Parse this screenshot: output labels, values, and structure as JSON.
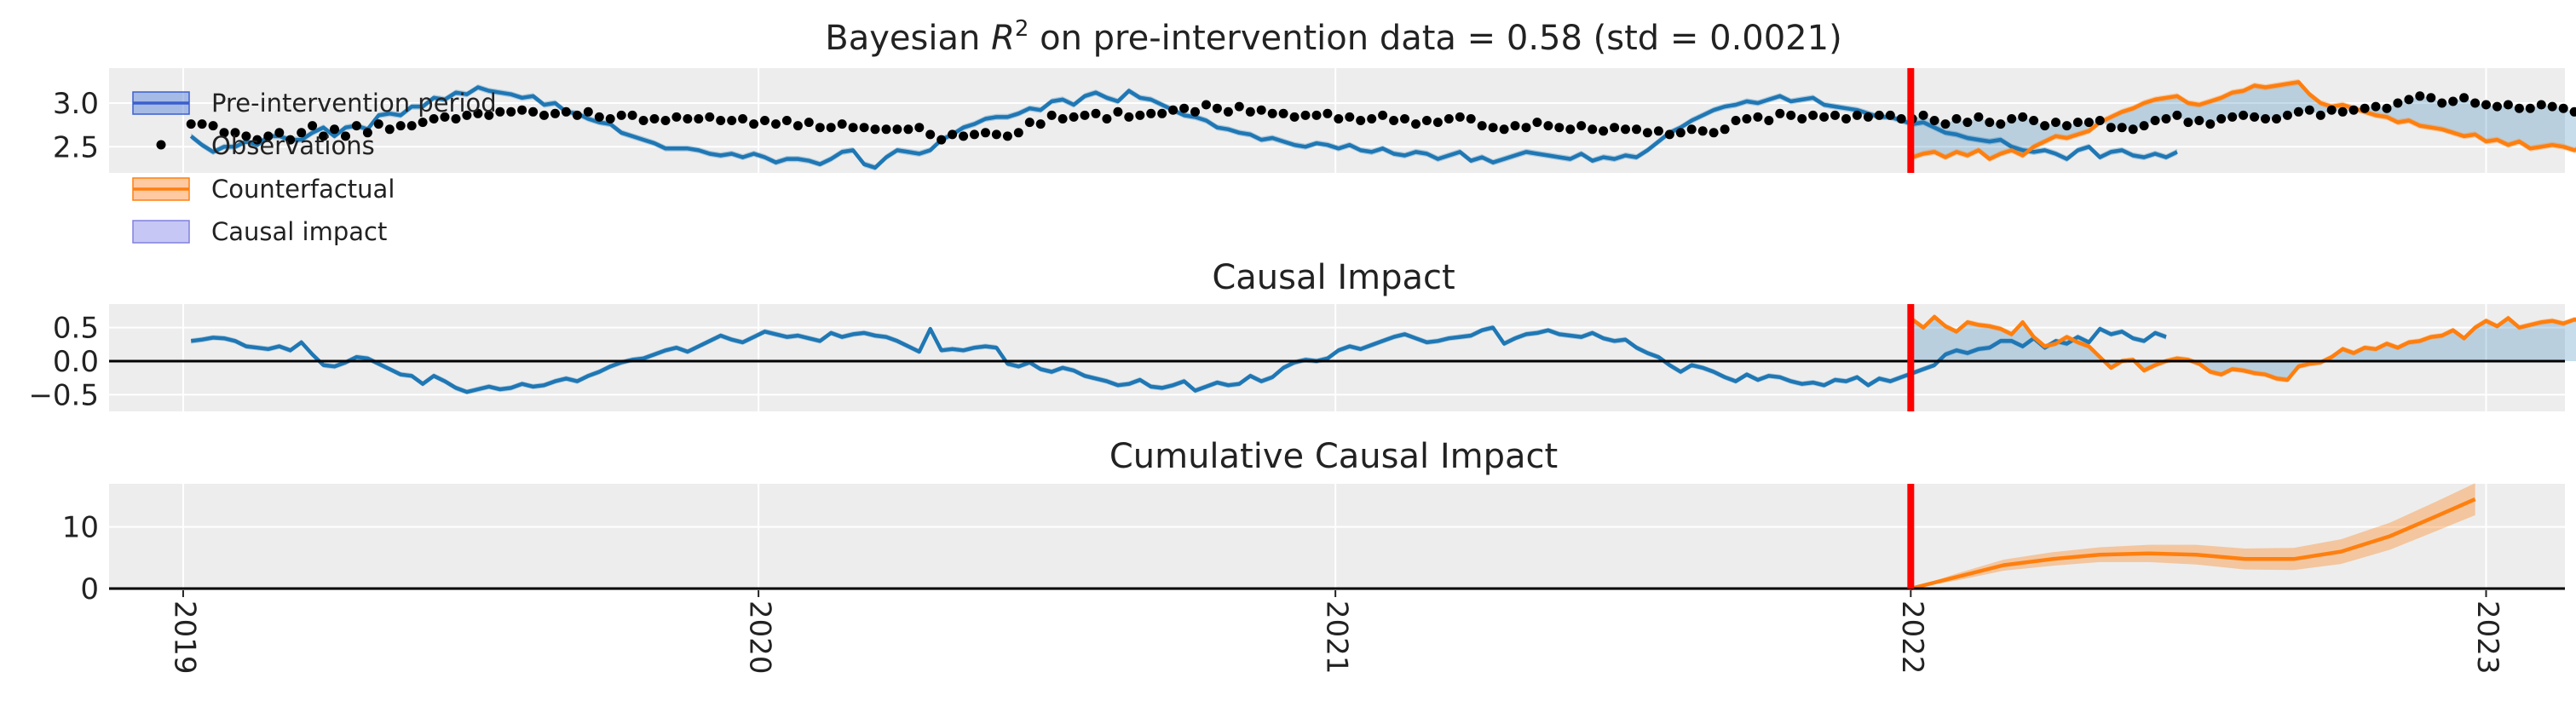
{
  "colors": {
    "blue": "#1f77b4",
    "orange": "#ff7f0e",
    "intervention": "#ff0000",
    "impact_fill": "#9999ee",
    "panel_bg": "#ededed",
    "grid": "#ffffff",
    "observation": "#000000"
  },
  "legend": {
    "items": [
      {
        "label": "Pre-intervention period",
        "symbol": "band-line-blue"
      },
      {
        "label": "Observations",
        "symbol": "dot-black"
      },
      {
        "label": "Counterfactual",
        "symbol": "band-line-orange"
      },
      {
        "label": "Causal impact",
        "symbol": "band-purple"
      }
    ],
    "position": "upper-left"
  },
  "chart_data": [
    {
      "type": "line",
      "title": "Bayesian R² on pre-intervention data = 0.58 (std = 0.0021)",
      "title_prefix": "Bayesian ",
      "title_symbol": "R",
      "title_sup": "2",
      "title_suffix": " on pre-intervention data = 0.58 (std = 0.0021)",
      "xlabel": "",
      "ylabel": "",
      "x_domain": [
        "2018-11-15",
        "2023-02-20"
      ],
      "ylim": [
        2.2,
        3.4
      ],
      "y_ticks": [
        2.5,
        3.0
      ],
      "y_tick_labels": [
        "2.5",
        "3.0"
      ],
      "grid": true,
      "intervention_date": "2022-01-01",
      "series": [
        {
          "name": "Observations",
          "kind": "scatter",
          "color": "#000000",
          "start": "2019-01-06",
          "step_days": 7,
          "values": [
            2.76,
            2.76,
            2.74,
            2.66,
            2.66,
            2.62,
            2.58,
            2.62,
            2.66,
            2.58,
            2.66,
            2.74,
            2.62,
            2.7,
            2.62,
            2.74,
            2.66,
            2.76,
            2.7,
            2.74,
            2.74,
            2.78,
            2.82,
            2.84,
            2.82,
            2.86,
            2.88,
            2.86,
            2.9,
            2.9,
            2.92,
            2.9,
            2.86,
            2.88,
            2.9,
            2.86,
            2.9,
            2.84,
            2.82,
            2.86,
            2.86,
            2.8,
            2.82,
            2.8,
            2.84,
            2.82,
            2.82,
            2.84,
            2.8,
            2.8,
            2.82,
            2.76,
            2.8,
            2.76,
            2.8,
            2.74,
            2.78,
            2.72,
            2.72,
            2.76,
            2.72,
            2.72,
            2.7,
            2.7,
            2.7,
            2.7,
            2.72,
            2.64,
            2.58,
            2.64,
            2.62,
            2.64,
            2.66,
            2.64,
            2.62,
            2.66,
            2.78,
            2.76,
            2.86,
            2.82,
            2.84,
            2.86,
            2.88,
            2.82,
            2.9,
            2.84,
            2.86,
            2.88,
            2.88,
            2.92,
            2.94,
            2.9,
            2.98,
            2.94,
            2.9,
            2.96,
            2.9,
            2.92,
            2.88,
            2.88,
            2.84,
            2.86,
            2.86,
            2.88,
            2.82,
            2.84,
            2.8,
            2.82,
            2.86,
            2.8,
            2.82,
            2.76,
            2.8,
            2.78,
            2.82,
            2.84,
            2.82,
            2.74,
            2.72,
            2.7,
            2.74,
            2.72,
            2.78,
            2.74,
            2.72,
            2.7,
            2.74,
            2.7,
            2.68,
            2.72,
            2.7,
            2.7,
            2.66,
            2.68,
            2.64,
            2.66,
            2.7,
            2.68,
            2.66,
            2.7,
            2.8,
            2.82,
            2.84,
            2.8,
            2.88,
            2.86,
            2.82,
            2.86,
            2.84,
            2.86,
            2.82,
            2.86,
            2.84,
            2.86,
            2.86,
            2.82,
            2.82,
            2.86,
            2.8,
            2.76,
            2.82,
            2.78,
            2.84,
            2.78,
            2.76,
            2.82,
            2.84,
            2.8,
            2.74,
            2.78,
            2.74,
            2.78,
            2.78,
            2.8,
            2.72,
            2.72,
            2.7,
            2.74,
            2.8,
            2.82,
            2.86,
            2.78,
            2.8,
            2.76,
            2.82,
            2.84,
            2.86,
            2.84,
            2.82,
            2.82,
            2.86,
            2.9,
            2.92,
            2.86,
            2.92,
            2.9,
            2.92,
            2.94,
            2.96,
            2.94,
            3.0,
            3.04,
            3.08,
            3.06,
            3.0,
            3.02,
            3.06,
            3.0,
            2.98,
            2.96,
            2.98,
            2.94,
            2.94,
            2.98,
            2.96,
            2.94,
            2.9,
            2.92,
            2.94,
            2.96,
            2.9,
            2.92,
            2.94,
            2.88,
            2.86
          ]
        },
        {
          "name": "Pre-intervention period",
          "kind": "line",
          "color": "#1f77b4",
          "start": "2019-01-06",
          "step_days": 7,
          "values": [
            2.62,
            2.52,
            2.44,
            2.5,
            2.5,
            2.56,
            2.52,
            2.62,
            2.62,
            2.58,
            2.58,
            2.66,
            2.72,
            2.62,
            2.72,
            2.74,
            2.7,
            2.86,
            2.88,
            2.86,
            2.96,
            2.96,
            3.06,
            3.04,
            3.12,
            3.1,
            3.18,
            3.14,
            3.12,
            3.1,
            3.06,
            3.08,
            2.98,
            3.0,
            2.9,
            2.88,
            2.82,
            2.78,
            2.76,
            2.66,
            2.62,
            2.58,
            2.54,
            2.48,
            2.48,
            2.48,
            2.46,
            2.42,
            2.4,
            2.42,
            2.38,
            2.42,
            2.38,
            2.32,
            2.36,
            2.36,
            2.34,
            2.3,
            2.36,
            2.44,
            2.46,
            2.3,
            2.26,
            2.38,
            2.46,
            2.44,
            2.42,
            2.46,
            2.58,
            2.64,
            2.72,
            2.76,
            2.82,
            2.84,
            2.84,
            2.88,
            2.94,
            2.92,
            3.02,
            3.04,
            2.98,
            3.08,
            3.12,
            3.06,
            3.02,
            3.14,
            3.06,
            3.04,
            2.98,
            2.92,
            2.86,
            2.84,
            2.8,
            2.72,
            2.7,
            2.66,
            2.64,
            2.58,
            2.6,
            2.56,
            2.52,
            2.5,
            2.54,
            2.52,
            2.48,
            2.52,
            2.46,
            2.44,
            2.48,
            2.42,
            2.4,
            2.44,
            2.42,
            2.36,
            2.4,
            2.44,
            2.34,
            2.38,
            2.32,
            2.36,
            2.4,
            2.44,
            2.42,
            2.4,
            2.38,
            2.36,
            2.42,
            2.34,
            2.38,
            2.36,
            2.4,
            2.38,
            2.46,
            2.56,
            2.66,
            2.72,
            2.8,
            2.86,
            2.92,
            2.96,
            2.98,
            3.02,
            3.0,
            3.04,
            3.08,
            3.02,
            3.04,
            3.06,
            2.98,
            2.96,
            2.94,
            2.92,
            2.88,
            2.84,
            2.84,
            2.8,
            2.76,
            2.78,
            2.72,
            2.66,
            2.64,
            2.6,
            2.58,
            2.56,
            2.58,
            2.5,
            2.46,
            2.44,
            2.46,
            2.42,
            2.36,
            2.46,
            2.5,
            2.38,
            2.44,
            2.46,
            2.4,
            2.38,
            2.42,
            2.38,
            2.44
          ]
        },
        {
          "name": "Counterfactual",
          "kind": "line",
          "color": "#ff7f0e",
          "start": "2022-01-02",
          "step_days": 7,
          "values": [
            2.38,
            2.42,
            2.44,
            2.38,
            2.44,
            2.4,
            2.46,
            2.36,
            2.42,
            2.46,
            2.4,
            2.5,
            2.56,
            2.62,
            2.6,
            2.64,
            2.68,
            2.78,
            2.84,
            2.9,
            2.94,
            3.0,
            3.04,
            3.06,
            3.08,
            3.0,
            2.98,
            3.02,
            3.06,
            3.12,
            3.14,
            3.2,
            3.18,
            3.2,
            3.22,
            3.24,
            3.1,
            3.0,
            2.96,
            2.98,
            2.94,
            2.9,
            2.86,
            2.84,
            2.78,
            2.8,
            2.74,
            2.72,
            2.7,
            2.66,
            2.62,
            2.64,
            2.56,
            2.58,
            2.52,
            2.56,
            2.48,
            2.5,
            2.52,
            2.5,
            2.46,
            2.5,
            2.48,
            2.46,
            2.42,
            2.46,
            2.44,
            2.4
          ]
        }
      ]
    },
    {
      "type": "line",
      "title": "Causal Impact",
      "xlabel": "",
      "ylabel": "",
      "x_domain": [
        "2018-11-15",
        "2023-02-20"
      ],
      "ylim": [
        -0.75,
        0.85
      ],
      "y_ticks": [
        -0.5,
        0.0,
        0.5
      ],
      "y_tick_labels": [
        "−0.5",
        "0.0",
        "0.5"
      ],
      "grid": true,
      "zero_line": true,
      "intervention_date": "2022-01-01",
      "series": [
        {
          "name": "Pre-intervention period",
          "kind": "line",
          "color": "#1f77b4",
          "start": "2019-01-06",
          "step_days": 7,
          "values": [
            0.3,
            0.32,
            0.35,
            0.34,
            0.3,
            0.22,
            0.2,
            0.18,
            0.22,
            0.16,
            0.28,
            0.1,
            -0.06,
            -0.08,
            -0.02,
            0.06,
            0.04,
            -0.04,
            -0.12,
            -0.2,
            -0.22,
            -0.34,
            -0.22,
            -0.3,
            -0.4,
            -0.46,
            -0.42,
            -0.38,
            -0.42,
            -0.4,
            -0.34,
            -0.38,
            -0.36,
            -0.3,
            -0.26,
            -0.3,
            -0.22,
            -0.16,
            -0.08,
            -0.02,
            0.02,
            0.04,
            0.1,
            0.16,
            0.2,
            0.14,
            0.22,
            0.3,
            0.38,
            0.32,
            0.28,
            0.36,
            0.44,
            0.4,
            0.36,
            0.38,
            0.34,
            0.3,
            0.42,
            0.36,
            0.4,
            0.42,
            0.38,
            0.36,
            0.3,
            0.22,
            0.14,
            0.48,
            0.16,
            0.18,
            0.16,
            0.2,
            0.22,
            0.2,
            -0.04,
            -0.08,
            -0.02,
            -0.12,
            -0.16,
            -0.1,
            -0.14,
            -0.22,
            -0.26,
            -0.3,
            -0.36,
            -0.34,
            -0.28,
            -0.38,
            -0.4,
            -0.36,
            -0.3,
            -0.44,
            -0.38,
            -0.32,
            -0.36,
            -0.34,
            -0.22,
            -0.3,
            -0.24,
            -0.1,
            -0.02,
            0.02,
            0.0,
            0.04,
            0.16,
            0.22,
            0.18,
            0.24,
            0.3,
            0.36,
            0.4,
            0.34,
            0.28,
            0.3,
            0.34,
            0.36,
            0.38,
            0.46,
            0.5,
            0.26,
            0.34,
            0.4,
            0.42,
            0.46,
            0.4,
            0.38,
            0.36,
            0.42,
            0.34,
            0.3,
            0.32,
            0.2,
            0.12,
            0.06,
            -0.06,
            -0.16,
            -0.06,
            -0.1,
            -0.16,
            -0.24,
            -0.3,
            -0.2,
            -0.28,
            -0.22,
            -0.24,
            -0.3,
            -0.34,
            -0.32,
            -0.36,
            -0.28,
            -0.3,
            -0.24,
            -0.36,
            -0.26,
            -0.3,
            -0.24,
            -0.18,
            -0.12,
            -0.06,
            0.1,
            0.16,
            0.12,
            0.18,
            0.2,
            0.3,
            0.3,
            0.22,
            0.34,
            0.2,
            0.3,
            0.26,
            0.36,
            0.28,
            0.48,
            0.4,
            0.44,
            0.34,
            0.3,
            0.42,
            0.36
          ]
        },
        {
          "name": "Counterfactual",
          "kind": "line",
          "color": "#ff7f0e",
          "start": "2022-01-02",
          "step_days": 7,
          "values": [
            0.62,
            0.5,
            0.66,
            0.52,
            0.44,
            0.58,
            0.54,
            0.52,
            0.48,
            0.4,
            0.58,
            0.36,
            0.22,
            0.26,
            0.36,
            0.28,
            0.22,
            0.06,
            -0.1,
            0.0,
            0.02,
            -0.14,
            -0.06,
            0.0,
            0.04,
            0.02,
            -0.04,
            -0.16,
            -0.2,
            -0.12,
            -0.14,
            -0.18,
            -0.2,
            -0.26,
            -0.28,
            -0.08,
            -0.04,
            -0.02,
            0.06,
            0.18,
            0.12,
            0.2,
            0.18,
            0.26,
            0.2,
            0.28,
            0.3,
            0.36,
            0.38,
            0.46,
            0.34,
            0.5,
            0.6,
            0.52,
            0.64,
            0.5,
            0.54,
            0.58,
            0.6,
            0.56,
            0.62,
            0.6,
            0.54,
            0.44,
            0.64,
            0.6
          ]
        }
      ]
    },
    {
      "type": "line",
      "title": "Cumulative Causal Impact",
      "xlabel": "",
      "ylabel": "",
      "x_domain": [
        "2018-11-15",
        "2023-02-20"
      ],
      "ylim": [
        0,
        17
      ],
      "y_ticks": [
        0,
        10
      ],
      "y_tick_labels": [
        "0",
        "10"
      ],
      "grid": true,
      "zero_line": true,
      "intervention_date": "2022-01-01",
      "x_ticks": [
        "2019-01-01",
        "2020-01-01",
        "2021-01-01",
        "2022-01-01",
        "2023-01-01"
      ],
      "x_tick_labels": [
        "2019",
        "2020",
        "2021",
        "2022",
        "2023"
      ],
      "series": [
        {
          "name": "Counterfactual",
          "kind": "line",
          "color": "#ff7f0e",
          "x": [
            "2022-01-01",
            "2022-02-01",
            "2022-03-01",
            "2022-04-01",
            "2022-05-01",
            "2022-06-01",
            "2022-07-01",
            "2022-08-01",
            "2022-09-01",
            "2022-10-01",
            "2022-11-01",
            "2022-12-01",
            "2022-12-25"
          ],
          "values": [
            0.0,
            2.0,
            3.8,
            4.8,
            5.5,
            5.7,
            5.5,
            4.8,
            4.8,
            6.0,
            8.5,
            11.8,
            14.5
          ],
          "band": [
            0.0,
            0.6,
            0.9,
            1.1,
            1.2,
            1.4,
            1.6,
            1.7,
            1.8,
            2.0,
            2.2,
            2.4,
            2.6
          ]
        }
      ]
    }
  ]
}
